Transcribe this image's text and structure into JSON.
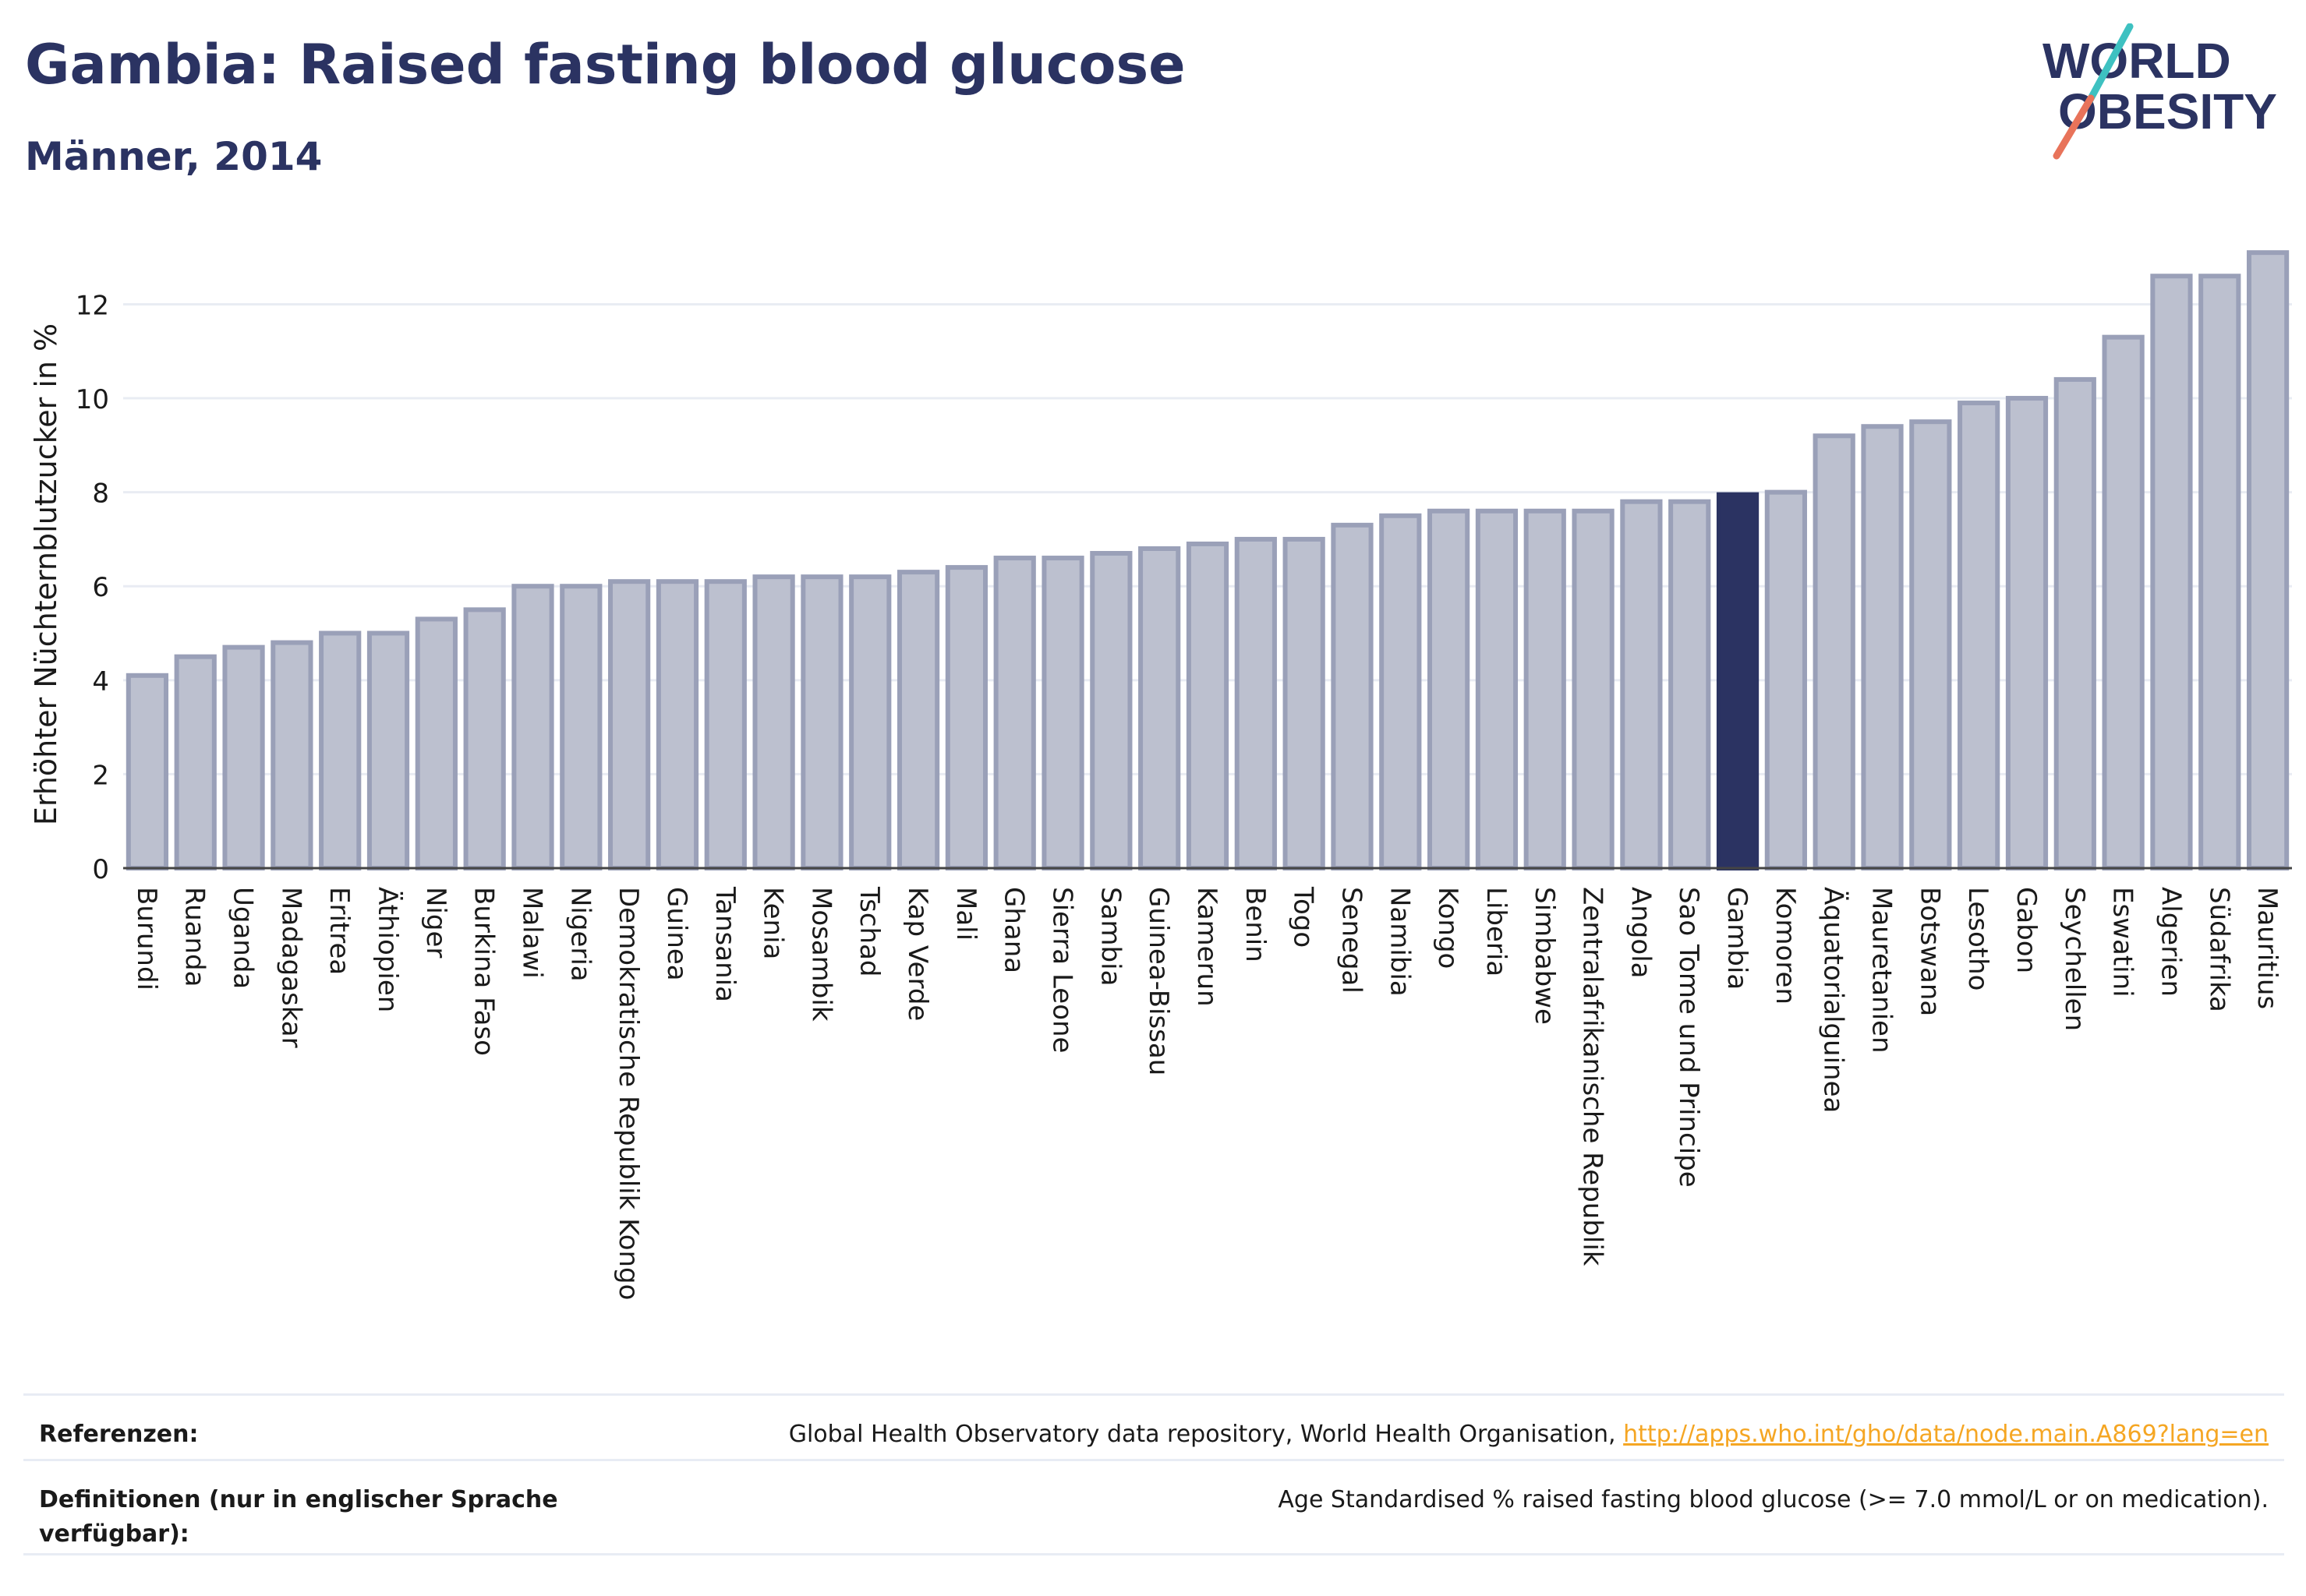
{
  "title": "Gambia: Raised fasting blood glucose",
  "subtitle": "Männer, 2014",
  "logo": {
    "line1": "WORLD",
    "line2": "OBESITY"
  },
  "colors": {
    "bar_fill": "#bcc0cf",
    "bar_stroke": "#9aa0b8",
    "highlight": "#2b3362",
    "grid": "#e9ecf3",
    "logo_navy": "#2b3362",
    "logo_teal": "#3ec1c1",
    "logo_coral": "#e8735a",
    "link": "#f5a623"
  },
  "chart_data": {
    "type": "bar",
    "ylabel": "Erhöhter Nüchternblutzucker in %",
    "ylim": [
      0,
      13.5
    ],
    "yticks": [
      0,
      2,
      4,
      6,
      8,
      10,
      12
    ],
    "highlight": "Gambia",
    "grid": true,
    "categories": [
      "Burundi",
      "Ruanda",
      "Uganda",
      "Madagaskar",
      "Eritrea",
      "Äthiopien",
      "Niger",
      "Burkina Faso",
      "Malawi",
      "Nigeria",
      "Demokratische Republik Kongo",
      "Guinea",
      "Tansania",
      "Kenia",
      "Mosambik",
      "Tschad",
      "Kap Verde",
      "Mali",
      "Ghana",
      "Sierra Leone",
      "Sambia",
      "Guinea-Bissau",
      "Kamerun",
      "Benin",
      "Togo",
      "Senegal",
      "Namibia",
      "Kongo",
      "Liberia",
      "Simbabwe",
      "Zentralafrikanische Republik",
      "Angola",
      "Sao Tome und Principe",
      "Gambia",
      "Komoren",
      "Äquatorialguinea",
      "Mauretanien",
      "Botswana",
      "Lesotho",
      "Gabon",
      "Seychellen",
      "Eswatini",
      "Algerien",
      "Südafrika",
      "Mauritius"
    ],
    "values": [
      4.1,
      4.5,
      4.7,
      4.8,
      5.0,
      5.0,
      5.3,
      5.5,
      6.0,
      6.0,
      6.1,
      6.1,
      6.1,
      6.2,
      6.2,
      6.2,
      6.3,
      6.4,
      6.6,
      6.6,
      6.7,
      6.8,
      6.9,
      7.0,
      7.0,
      7.3,
      7.5,
      7.6,
      7.6,
      7.6,
      7.6,
      7.8,
      7.8,
      7.95,
      8.0,
      9.2,
      9.4,
      9.5,
      9.9,
      10.0,
      10.4,
      11.3,
      12.6,
      12.6,
      13.1
    ]
  },
  "references": {
    "ref_label": "Referenzen:",
    "ref_text": "Global Health Observatory data repository, World Health Organisation,",
    "ref_link": "http://apps.who.int/gho/data/node.main.A869?lang=en",
    "def_label": "Definitionen (nur in englischer Sprache verfügbar):",
    "def_text": "Age Standardised % raised fasting blood glucose (>= 7.0 mmol/L or on medication)."
  }
}
